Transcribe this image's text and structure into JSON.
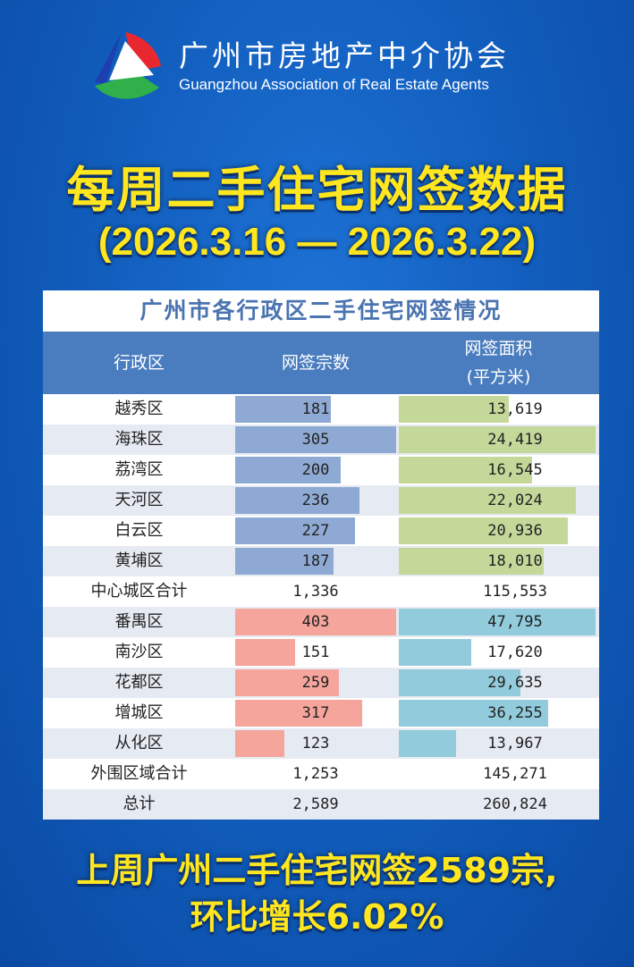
{
  "header": {
    "org_cn": "广州市房地产中介协会",
    "org_en": "Guangzhou Association of Real Estate Agents"
  },
  "title": "每周二手住宅网签数据",
  "date_range": "(2026.3.16 — 2026.3.22)",
  "colors": {
    "core_count": "#8eaad4",
    "core_area": "#c4d89a",
    "outer_count": "#f6a59c",
    "outer_area": "#92ccdc",
    "header_bg": "#4a7dbf",
    "title_yellow": "#ffe61e"
  },
  "table": {
    "title": "广州市各行政区二手住宅网签情况",
    "headers": {
      "district": "行政区",
      "count": "网签宗数",
      "area_line1": "网签面积",
      "area_line2": "(平方米)"
    }
  },
  "chart_data": {
    "type": "table",
    "columns": [
      "行政区",
      "网签宗数",
      "网签面积(平方米)"
    ],
    "rows": [
      {
        "district": "越秀区",
        "count": 181,
        "count_text": "181",
        "area": 13619,
        "area_text": "13,619",
        "group": "core"
      },
      {
        "district": "海珠区",
        "count": 305,
        "count_text": "305",
        "area": 24419,
        "area_text": "24,419",
        "group": "core"
      },
      {
        "district": "荔湾区",
        "count": 200,
        "count_text": "200",
        "area": 16545,
        "area_text": "16,545",
        "group": "core"
      },
      {
        "district": "天河区",
        "count": 236,
        "count_text": "236",
        "area": 22024,
        "area_text": "22,024",
        "group": "core"
      },
      {
        "district": "白云区",
        "count": 227,
        "count_text": "227",
        "area": 20936,
        "area_text": "20,936",
        "group": "core"
      },
      {
        "district": "黄埔区",
        "count": 187,
        "count_text": "187",
        "area": 18010,
        "area_text": "18,010",
        "group": "core"
      },
      {
        "district": "中心城区合计",
        "count": 1336,
        "count_text": "1,336",
        "area": 115553,
        "area_text": "115,553",
        "group": "subtotal"
      },
      {
        "district": "番禺区",
        "count": 403,
        "count_text": "403",
        "area": 47795,
        "area_text": "47,795",
        "group": "outer"
      },
      {
        "district": "南沙区",
        "count": 151,
        "count_text": "151",
        "area": 17620,
        "area_text": "17,620",
        "group": "outer"
      },
      {
        "district": "花都区",
        "count": 259,
        "count_text": "259",
        "area": 29635,
        "area_text": "29,635",
        "group": "outer"
      },
      {
        "district": "增城区",
        "count": 317,
        "count_text": "317",
        "area": 36255,
        "area_text": "36,255",
        "group": "outer"
      },
      {
        "district": "从化区",
        "count": 123,
        "count_text": "123",
        "area": 13967,
        "area_text": "13,967",
        "group": "outer"
      },
      {
        "district": "外围区域合计",
        "count": 1253,
        "count_text": "1,253",
        "area": 145271,
        "area_text": "145,271",
        "group": "subtotal"
      },
      {
        "district": "总计",
        "count": 2589,
        "count_text": "2,589",
        "area": 260824,
        "area_text": "260,824",
        "group": "total"
      }
    ],
    "bar_scale": {
      "core": {
        "count_max": 305,
        "area_max": 24419
      },
      "outer": {
        "count_max": 403,
        "area_max": 47795
      }
    }
  },
  "summary": {
    "line1": "上周广州二手住宅网签2589宗,",
    "line2": "环比增长6.02%"
  }
}
